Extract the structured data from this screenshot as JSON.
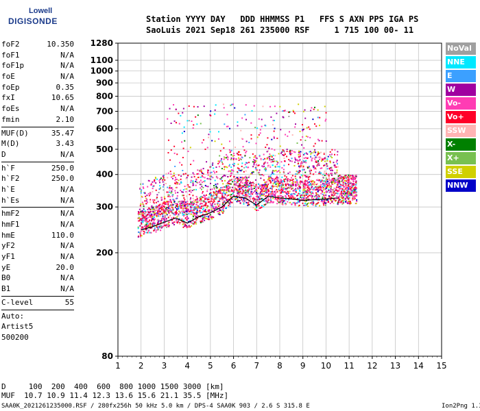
{
  "logo": {
    "line1": "Lowell",
    "line2": "DIGISONDE"
  },
  "header": {
    "label_row": "Station YYYY DAY   DDD HHMMSS P1   FFS S AXN PPS IGA PS",
    "value_row": "SaoLuis 2021 Sep18 261 235000 RSF     1 715 100 00- 11"
  },
  "scaled": [
    {
      "name": "foF2",
      "value": "10.350"
    },
    {
      "name": "foF1",
      "value": "N/A"
    },
    {
      "name": "foF1p",
      "value": "N/A"
    },
    {
      "name": "foE",
      "value": "N/A"
    },
    {
      "name": "foEp",
      "value": "0.35"
    },
    {
      "name": "fxI",
      "value": "10.65"
    },
    {
      "name": "foEs",
      "value": "N/A"
    },
    {
      "name": "fmin",
      "value": "2.10"
    },
    {
      "sep": true
    },
    {
      "name": "MUF(D)",
      "value": "35.47"
    },
    {
      "name": "M(D)",
      "value": "3.43"
    },
    {
      "name": "D",
      "value": "N/A"
    },
    {
      "sep": true
    },
    {
      "name": "h`F",
      "value": "250.0"
    },
    {
      "name": "h`F2",
      "value": "250.0"
    },
    {
      "name": "h`E",
      "value": "N/A"
    },
    {
      "name": "h`Es",
      "value": "N/A"
    },
    {
      "sep": true
    },
    {
      "name": "hmF2",
      "value": "N/A"
    },
    {
      "name": "hmF1",
      "value": "N/A"
    },
    {
      "name": "hmE",
      "value": "110.0"
    },
    {
      "name": "yF2",
      "value": "N/A"
    },
    {
      "name": "yF1",
      "value": "N/A"
    },
    {
      "name": "yE",
      "value": "20.0"
    },
    {
      "name": "B0",
      "value": "N/A"
    },
    {
      "name": "B1",
      "value": "N/A"
    },
    {
      "sep": true
    },
    {
      "name": "C-level",
      "value": "55"
    },
    {
      "sep": true
    },
    {
      "name": "Auto:",
      "value": ""
    },
    {
      "name": "Artist5",
      "value": ""
    },
    {
      "name": "500200",
      "value": ""
    }
  ],
  "legend": [
    {
      "label": "NoVal",
      "color": "#a0a0a0"
    },
    {
      "label": "NNE",
      "color": "#00e8ff"
    },
    {
      "label": "E",
      "color": "#3ca0ff"
    },
    {
      "label": "W",
      "color": "#a000a0"
    },
    {
      "label": "Vo-",
      "color": "#ff3cb4"
    },
    {
      "label": "Vo+",
      "color": "#ff0028"
    },
    {
      "label": "SSW",
      "color": "#ffb4b4"
    },
    {
      "label": "X-",
      "color": "#008000"
    },
    {
      "label": "X+",
      "color": "#78c050"
    },
    {
      "label": "SSE",
      "color": "#d0d000"
    },
    {
      "label": "NNW",
      "color": "#0000c8"
    }
  ],
  "muf_table": {
    "d_row": "D     100  200  400  600  800 1000 1500 3000 [km]",
    "muf_row": "MUF  10.7 10.9 11.4 12.3 13.6 15.6 21.1 35.5 [MHz]"
  },
  "footer": {
    "left": "SAA0K_2021261235000.RSF / 280fx256h 50 kHz 5.0 km / DPS-4 SAA0K 903 / 2.6 S 315.8 E",
    "right": "Ion2Png 1.3.17"
  },
  "chart_data": {
    "type": "scatter",
    "xlim": [
      1,
      15
    ],
    "ylim": [
      80,
      1280
    ],
    "y_scale": "log",
    "x_ticks": [
      1,
      2,
      3,
      4,
      5,
      6,
      7,
      8,
      9,
      10,
      11,
      12,
      13,
      14,
      15
    ],
    "y_ticks": [
      80,
      200,
      300,
      400,
      500,
      600,
      700,
      800,
      900,
      1000,
      1100,
      1280
    ],
    "grid": true,
    "trace_series": {
      "x": [
        2.0,
        2.5,
        3.0,
        3.5,
        4.0,
        4.5,
        5.0,
        5.5,
        6.0,
        6.5,
        7.0,
        7.5,
        8.0,
        8.5,
        9.0,
        9.5,
        10.0,
        10.5
      ],
      "y": [
        245,
        252,
        262,
        272,
        260,
        275,
        285,
        300,
        330,
        325,
        305,
        330,
        325,
        322,
        318,
        320,
        322,
        325
      ]
    }
  }
}
